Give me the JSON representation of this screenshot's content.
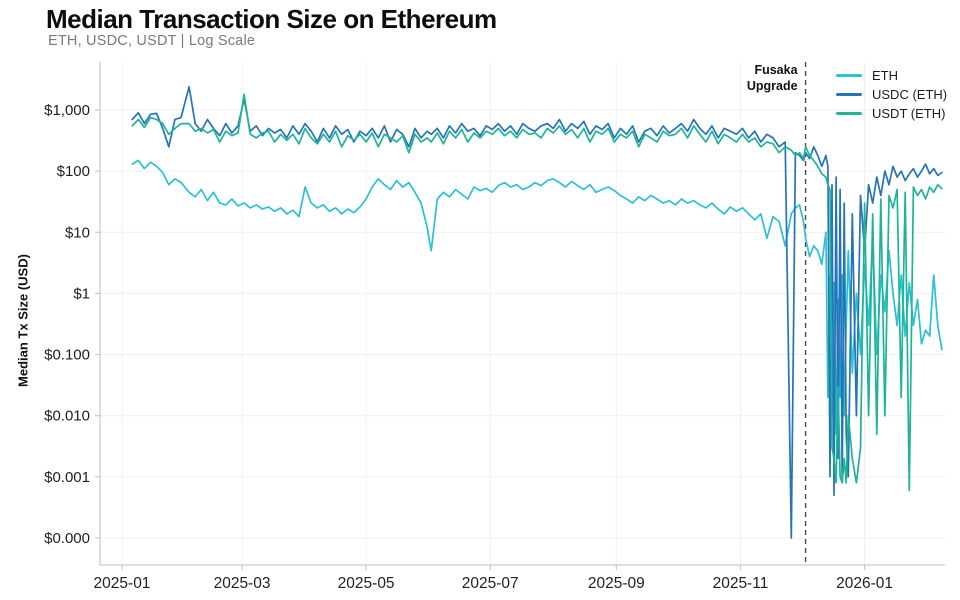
{
  "title": "Median Transaction Size on Ethereum",
  "subtitle": "ETH, USDC, USDT | Log Scale",
  "y_axis_title": "Median Tx Size (USD)",
  "annotation": {
    "line1": "Fusaka",
    "line2": "Upgrade",
    "date": "2025-12-03"
  },
  "legend": [
    {
      "label": "ETH"
    },
    {
      "label": "USDC (ETH)"
    },
    {
      "label": "USDT (ETH)"
    }
  ],
  "colors": {
    "eth": "#2bc0d4",
    "usdc": "#2673b8",
    "usdt": "#1eb495",
    "grid": "#f0f0f0",
    "axis": "#c9c9c9",
    "tick_text": "#1f1f1f",
    "annotation_line": "#4a4a4a"
  },
  "chart_data": {
    "type": "line",
    "title": "Median Transaction Size on Ethereum",
    "subtitle": "ETH, USDC, USDT | Log Scale",
    "xlabel": "",
    "ylabel": "Median Tx Size (USD)",
    "yscale": "log",
    "ylim": [
      0.0001,
      1000
    ],
    "grid": "on",
    "legend_position": "top-right",
    "ytick_values": [
      1000,
      100,
      10,
      1,
      0.1,
      0.01,
      0.001,
      0.0001
    ],
    "ytick_labels": [
      "$1,000",
      "$100",
      "$10",
      "$1",
      "$0.100",
      "$0.010",
      "$0.001",
      "$0.000"
    ],
    "xticks": [
      {
        "label": "2025-01",
        "date": "2025-01-01"
      },
      {
        "label": "2025-03",
        "date": "2025-03-01"
      },
      {
        "label": "2025-05",
        "date": "2025-05-01"
      },
      {
        "label": "2025-07",
        "date": "2025-07-01"
      },
      {
        "label": "2025-09",
        "date": "2025-09-01"
      },
      {
        "label": "2025-11",
        "date": "2025-11-01"
      },
      {
        "label": "2026-01",
        "date": "2026-01-01"
      }
    ],
    "annotation_line": {
      "date": "2025-12-03",
      "label": "Fusaka Upgrade"
    },
    "dates": [
      "2025-01-06",
      "2025-01-09",
      "2025-01-12",
      "2025-01-15",
      "2025-01-18",
      "2025-01-21",
      "2025-01-24",
      "2025-01-27",
      "2025-01-30",
      "2025-02-03",
      "2025-02-06",
      "2025-02-09",
      "2025-02-12",
      "2025-02-15",
      "2025-02-18",
      "2025-02-21",
      "2025-02-24",
      "2025-02-27",
      "2025-03-02",
      "2025-03-05",
      "2025-03-08",
      "2025-03-11",
      "2025-03-14",
      "2025-03-17",
      "2025-03-20",
      "2025-03-23",
      "2025-03-26",
      "2025-03-29",
      "2025-04-01",
      "2025-04-04",
      "2025-04-07",
      "2025-04-10",
      "2025-04-13",
      "2025-04-16",
      "2025-04-19",
      "2025-04-22",
      "2025-04-25",
      "2025-04-28",
      "2025-05-01",
      "2025-05-04",
      "2025-05-07",
      "2025-05-10",
      "2025-05-13",
      "2025-05-16",
      "2025-05-19",
      "2025-05-22",
      "2025-05-25",
      "2025-05-28",
      "2025-05-31",
      "2025-06-02",
      "2025-06-05",
      "2025-06-08",
      "2025-06-11",
      "2025-06-14",
      "2025-06-17",
      "2025-06-20",
      "2025-06-23",
      "2025-06-26",
      "2025-06-29",
      "2025-07-02",
      "2025-07-05",
      "2025-07-08",
      "2025-07-11",
      "2025-07-14",
      "2025-07-17",
      "2025-07-20",
      "2025-07-23",
      "2025-07-26",
      "2025-07-29",
      "2025-08-01",
      "2025-08-04",
      "2025-08-07",
      "2025-08-10",
      "2025-08-13",
      "2025-08-16",
      "2025-08-19",
      "2025-08-22",
      "2025-08-25",
      "2025-08-28",
      "2025-08-31",
      "2025-09-03",
      "2025-09-06",
      "2025-09-09",
      "2025-09-12",
      "2025-09-15",
      "2025-09-18",
      "2025-09-21",
      "2025-09-24",
      "2025-09-27",
      "2025-09-30",
      "2025-10-03",
      "2025-10-06",
      "2025-10-09",
      "2025-10-12",
      "2025-10-15",
      "2025-10-18",
      "2025-10-21",
      "2025-10-24",
      "2025-10-27",
      "2025-10-30",
      "2025-11-02",
      "2025-11-05",
      "2025-11-08",
      "2025-11-11",
      "2025-11-14",
      "2025-11-17",
      "2025-11-20",
      "2025-11-23",
      "2025-11-26",
      "2025-11-28",
      "2025-11-30",
      "2025-12-02",
      "2025-12-03",
      "2025-12-05",
      "2025-12-07",
      "2025-12-09",
      "2025-12-11",
      "2025-12-13",
      "2025-12-14",
      "2025-12-15",
      "2025-12-16",
      "2025-12-17",
      "2025-12-18",
      "2025-12-19",
      "2025-12-20",
      "2025-12-21",
      "2025-12-22",
      "2025-12-23",
      "2025-12-24",
      "2025-12-26",
      "2025-12-28",
      "2025-12-30",
      "2026-01-01",
      "2026-01-03",
      "2026-01-05",
      "2026-01-07",
      "2026-01-09",
      "2026-01-11",
      "2026-01-13",
      "2026-01-15",
      "2026-01-17",
      "2026-01-19",
      "2026-01-21",
      "2026-01-23",
      "2026-01-25",
      "2026-01-27",
      "2026-01-29",
      "2026-01-31",
      "2026-02-02",
      "2026-02-04",
      "2026-02-06",
      "2026-02-08"
    ],
    "series": [
      {
        "name": "ETH",
        "color": "#2bc0d4",
        "values": [
          130,
          150,
          110,
          140,
          120,
          95,
          60,
          75,
          65,
          45,
          38,
          50,
          33,
          45,
          30,
          28,
          35,
          27,
          30,
          25,
          28,
          24,
          26,
          22,
          25,
          20,
          23,
          18,
          55,
          30,
          25,
          28,
          22,
          25,
          20,
          24,
          21,
          26,
          35,
          55,
          75,
          60,
          50,
          70,
          55,
          65,
          45,
          30,
          12,
          5,
          35,
          45,
          38,
          50,
          42,
          35,
          55,
          48,
          52,
          45,
          58,
          65,
          55,
          60,
          50,
          55,
          65,
          58,
          70,
          75,
          65,
          55,
          68,
          58,
          50,
          60,
          45,
          50,
          55,
          48,
          40,
          35,
          30,
          38,
          33,
          40,
          35,
          30,
          33,
          28,
          35,
          30,
          33,
          28,
          25,
          30,
          24,
          20,
          26,
          22,
          25,
          20,
          16,
          20,
          8,
          18,
          15,
          6,
          20,
          25,
          28,
          15,
          8,
          4,
          6,
          5,
          3,
          10,
          0.02,
          2,
          0.01,
          1.5,
          0.005,
          0.8,
          0.02,
          2,
          0.01,
          0.3,
          5,
          0.05,
          1,
          0.1,
          3,
          0.3,
          8,
          0.1,
          2,
          0.5,
          5,
          1,
          0.3,
          2,
          0.2,
          1.5,
          0.3,
          0.8,
          0.15,
          0.25,
          0.2,
          2,
          0.3,
          0.12
        ]
      },
      {
        "name": "USDC (ETH)",
        "color": "#2673b8",
        "values": [
          700,
          900,
          600,
          850,
          880,
          500,
          250,
          700,
          750,
          2400,
          600,
          450,
          700,
          500,
          380,
          600,
          420,
          550,
          1500,
          450,
          550,
          380,
          500,
          420,
          480,
          350,
          550,
          400,
          600,
          450,
          300,
          500,
          350,
          550,
          400,
          480,
          300,
          450,
          380,
          500,
          350,
          550,
          300,
          480,
          400,
          250,
          500,
          350,
          450,
          400,
          500,
          350,
          550,
          420,
          600,
          450,
          500,
          380,
          550,
          480,
          600,
          450,
          550,
          400,
          600,
          500,
          450,
          550,
          600,
          500,
          700,
          450,
          600,
          500,
          650,
          400,
          550,
          480,
          600,
          350,
          500,
          400,
          550,
          300,
          450,
          500,
          380,
          550,
          420,
          500,
          600,
          450,
          700,
          500,
          400,
          550,
          350,
          500,
          450,
          400,
          500,
          350,
          450,
          300,
          400,
          350,
          250,
          300,
          0.0001,
          200,
          180,
          150,
          200,
          160,
          250,
          180,
          120,
          180,
          120,
          0.001,
          60,
          0.0005,
          80,
          0.002,
          50,
          0.0008,
          30,
          0.005,
          0.001,
          20,
          0.01,
          40,
          5,
          60,
          30,
          80,
          40,
          100,
          60,
          120,
          80,
          100,
          70,
          90,
          110,
          80,
          100,
          130,
          90,
          110,
          85,
          95
        ]
      },
      {
        "name": "USDT (ETH)",
        "color": "#1eb495",
        "values": [
          550,
          700,
          520,
          750,
          700,
          600,
          400,
          500,
          600,
          600,
          450,
          500,
          420,
          480,
          300,
          450,
          380,
          420,
          1800,
          400,
          350,
          420,
          450,
          300,
          400,
          320,
          400,
          280,
          500,
          350,
          280,
          400,
          300,
          450,
          250,
          380,
          320,
          400,
          300,
          420,
          250,
          400,
          350,
          300,
          380,
          200,
          400,
          300,
          350,
          300,
          420,
          280,
          450,
          350,
          480,
          300,
          420,
          350,
          450,
          400,
          500,
          380,
          450,
          350,
          480,
          400,
          420,
          350,
          500,
          420,
          550,
          400,
          480,
          350,
          500,
          300,
          450,
          400,
          500,
          300,
          400,
          350,
          450,
          250,
          400,
          350,
          300,
          450,
          380,
          400,
          500,
          350,
          550,
          400,
          300,
          450,
          280,
          400,
          350,
          300,
          400,
          300,
          350,
          250,
          300,
          280,
          200,
          250,
          220,
          180,
          200,
          160,
          250,
          180,
          150,
          120,
          90,
          80,
          60,
          50,
          0.003,
          0.002,
          0.0008,
          0.03,
          0.001,
          0.0008,
          0.002,
          0.0008,
          0.01,
          0.002,
          0.0008,
          0.003,
          30,
          0.01,
          20,
          0.005,
          35,
          0.01,
          40,
          25,
          50,
          0.02,
          45,
          0.0006,
          55,
          40,
          50,
          35,
          55,
          45,
          60,
          52
        ]
      }
    ]
  }
}
